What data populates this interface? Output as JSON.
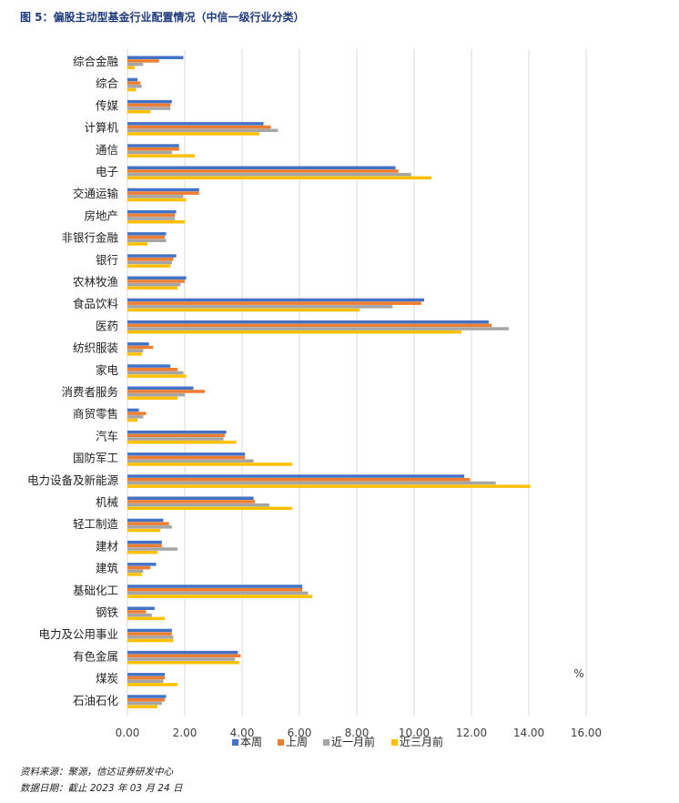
{
  "figure_title": "图 5：偏股主动型基金行业配置情况（中信一级行业分类）",
  "notes": {
    "source": "资料来源：聚源，信达证券研发中心",
    "date": "数据日期：截止 2023 年 03 月 24 日"
  },
  "colors": {
    "本周": "#4472c4",
    "上周": "#ed7d31",
    "近一月前": "#a5a5a5",
    "近三月前": "#ffc000",
    "gridline": "#d9d9d9",
    "axis_text": "#404040"
  },
  "chart_data": {
    "type": "bar",
    "orientation": "horizontal",
    "title": "",
    "xlabel": "",
    "ylabel": "",
    "unit_label": "%",
    "xlim": [
      0,
      16
    ],
    "xticks": [
      "0.00",
      "2.00",
      "4.00",
      "6.00",
      "8.00",
      "10.00",
      "12.00",
      "14.00",
      "16.00"
    ],
    "grid": "vertical",
    "legend_position": "bottom",
    "categories": [
      "综合金融",
      "综合",
      "传媒",
      "计算机",
      "通信",
      "电子",
      "交通运输",
      "房地产",
      "非银行金融",
      "银行",
      "农林牧渔",
      "食品饮料",
      "医药",
      "纺织服装",
      "家电",
      "消费者服务",
      "商贸零售",
      "汽车",
      "国防军工",
      "电力设备及新能源",
      "机械",
      "轻工制造",
      "建材",
      "建筑",
      "基础化工",
      "钢铁",
      "电力及公用事业",
      "有色金属",
      "煤炭",
      "石油石化"
    ],
    "series": [
      {
        "name": "本周",
        "values": [
          1.95,
          0.35,
          1.55,
          4.75,
          1.8,
          9.35,
          2.5,
          1.7,
          1.35,
          1.7,
          2.05,
          10.35,
          12.6,
          0.75,
          1.5,
          2.3,
          0.4,
          3.45,
          4.1,
          11.75,
          4.4,
          1.25,
          1.2,
          1.0,
          6.1,
          0.95,
          1.55,
          3.85,
          1.3,
          1.35
        ]
      },
      {
        "name": "上周",
        "values": [
          1.1,
          0.45,
          1.5,
          5.0,
          1.8,
          9.45,
          2.5,
          1.65,
          1.3,
          1.6,
          2.0,
          10.25,
          12.7,
          0.9,
          1.75,
          2.7,
          0.65,
          3.4,
          4.1,
          11.95,
          4.45,
          1.45,
          1.2,
          0.8,
          6.1,
          0.65,
          1.55,
          3.95,
          1.3,
          1.3
        ]
      },
      {
        "name": "近一月前",
        "values": [
          0.55,
          0.5,
          1.5,
          5.25,
          1.55,
          9.9,
          1.95,
          1.65,
          1.35,
          1.55,
          1.85,
          9.25,
          13.3,
          0.55,
          1.95,
          2.0,
          0.55,
          3.35,
          4.4,
          12.85,
          4.95,
          1.55,
          1.75,
          0.55,
          6.3,
          0.85,
          1.6,
          3.75,
          1.25,
          1.2
        ]
      },
      {
        "name": "近三月前",
        "values": [
          0.25,
          0.3,
          0.8,
          4.6,
          2.35,
          10.6,
          2.05,
          2.0,
          0.7,
          1.5,
          1.75,
          8.1,
          11.65,
          0.5,
          2.05,
          1.75,
          0.35,
          3.8,
          5.75,
          14.05,
          5.75,
          1.15,
          1.05,
          0.5,
          6.45,
          1.3,
          1.6,
          3.9,
          1.75,
          1.05
        ]
      }
    ]
  }
}
